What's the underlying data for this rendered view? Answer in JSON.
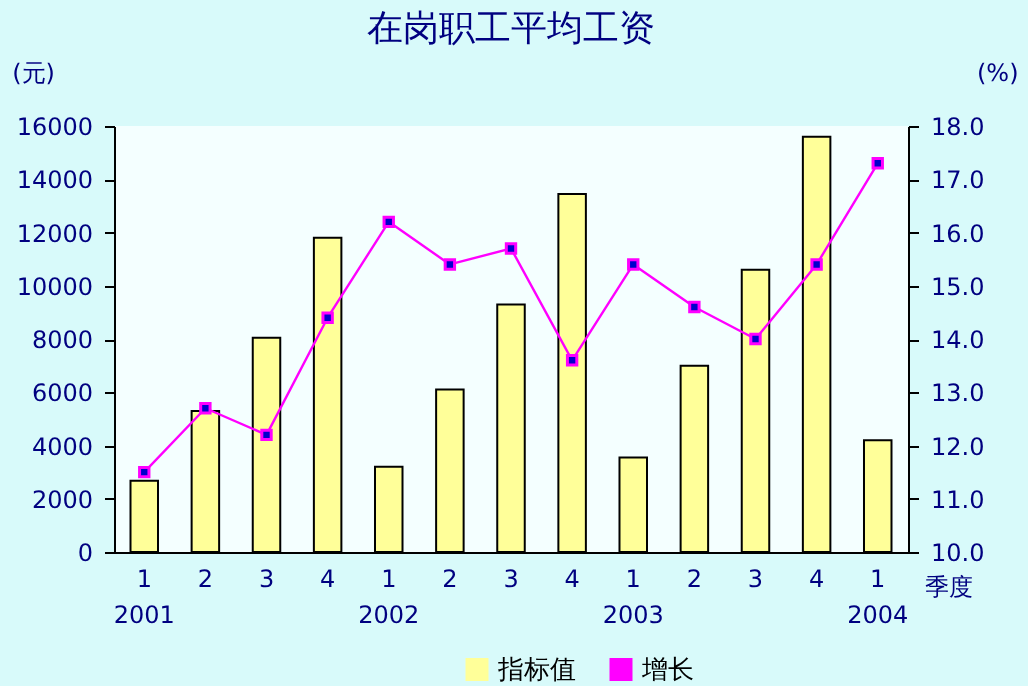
{
  "chart_data": {
    "type": "bar",
    "title": "在岗职工平均工资",
    "xlabel": "季度",
    "ylabel": "(元)",
    "y2label": "(%)",
    "categories": [
      "1\n2001",
      "2",
      "3",
      "4",
      "1\n2002",
      "2",
      "3",
      "4",
      "1\n2003",
      "2",
      "3",
      "4",
      "1\n2004"
    ],
    "series": [
      {
        "name": "指标值",
        "color": "#ffff99",
        "values": [
          2680,
          5300,
          8050,
          11800,
          3200,
          6100,
          9300,
          13450,
          3550,
          7000,
          10600,
          15600,
          4200
        ]
      },
      {
        "name": "增长",
        "type": "line",
        "axis": "y2",
        "color": "#ff00ff",
        "values": [
          11.5,
          12.7,
          12.2,
          14.4,
          16.2,
          15.4,
          15.7,
          13.6,
          15.4,
          14.6,
          14.0,
          15.4,
          17.3
        ]
      }
    ],
    "ylim": [
      0,
      16000
    ],
    "yticks": [
      0,
      2000,
      4000,
      6000,
      8000,
      10000,
      12000,
      14000,
      16000
    ],
    "y2lim": [
      10,
      18
    ],
    "y2ticks": [
      {
        "value": 10,
        "label": "10.0"
      },
      {
        "value": 11,
        "label": "11.0"
      },
      {
        "value": 12,
        "label": "12.0"
      },
      {
        "value": 13,
        "label": "13.0"
      },
      {
        "value": 14,
        "label": "14.0"
      },
      {
        "value": 15,
        "label": "15.0"
      },
      {
        "value": 16,
        "label": "16.0"
      },
      {
        "value": 17,
        "label": "17.0"
      },
      {
        "value": 18,
        "label": "18.0"
      }
    ],
    "legend": "bottom",
    "marker": "square",
    "grid": false
  }
}
